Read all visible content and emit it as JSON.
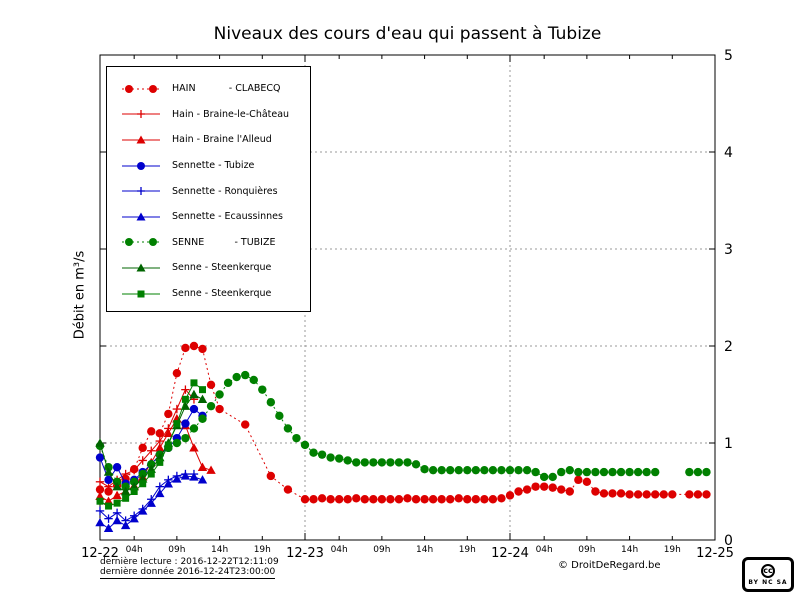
{
  "footer": {
    "last_reading": "dernière lecture : 2016-12-22T12:11:09",
    "last_data": "dernière donnée  2016-12-24T23:00:00",
    "copyright": "© DroitDeRegard.be",
    "badge_cc": "cc",
    "badge_terms": "BY NC SA"
  },
  "chart_data": {
    "type": "line",
    "title": "Niveaux des cours d'eau qui passent à Tubize",
    "xlabel": "",
    "ylabel": "Débit en m³/s",
    "ylim": [
      0,
      5
    ],
    "xlim": [
      0,
      72
    ],
    "y_ticks": [
      0,
      1,
      2,
      3,
      4,
      5
    ],
    "grid": {
      "h_values": [
        1,
        2,
        3,
        4
      ],
      "v_hours": [
        24,
        48
      ]
    },
    "legend_position": "upper left",
    "x_major_ticks": [
      {
        "h": 0,
        "label": "12-22"
      },
      {
        "h": 24,
        "label": "12-23"
      },
      {
        "h": 48,
        "label": "12-24"
      },
      {
        "h": 72,
        "label": "12-25"
      }
    ],
    "x_minor_ticks": [
      {
        "h": 4,
        "label": "04h"
      },
      {
        "h": 9,
        "label": "09h"
      },
      {
        "h": 14,
        "label": "14h"
      },
      {
        "h": 19,
        "label": "19h"
      },
      {
        "h": 28,
        "label": "04h"
      },
      {
        "h": 33,
        "label": "09h"
      },
      {
        "h": 38,
        "label": "14h"
      },
      {
        "h": 43,
        "label": "19h"
      },
      {
        "h": 52,
        "label": "04h"
      },
      {
        "h": 57,
        "label": "09h"
      },
      {
        "h": 62,
        "label": "14h"
      },
      {
        "h": 67,
        "label": "19h"
      }
    ],
    "series": [
      {
        "name": "HAIN           - CLABECQ",
        "color": "#dd0000",
        "marker": "circle",
        "line": "dotted",
        "points": [
          [
            0,
            0.52
          ],
          [
            1,
            0.5
          ],
          [
            2,
            0.56
          ],
          [
            3,
            0.63
          ],
          [
            4,
            0.73
          ],
          [
            5,
            0.95
          ],
          [
            6,
            1.12
          ],
          [
            7,
            1.1
          ],
          [
            8,
            1.3
          ],
          [
            9,
            1.72
          ],
          [
            10,
            1.98
          ],
          [
            11,
            2.0
          ],
          [
            12,
            1.97
          ],
          [
            13,
            1.6
          ],
          [
            14,
            1.35
          ],
          [
            17,
            1.19
          ],
          [
            20,
            0.66
          ],
          [
            22,
            0.52
          ],
          [
            24,
            0.42
          ],
          [
            25,
            0.42
          ],
          [
            26,
            0.43
          ],
          [
            27,
            0.42
          ],
          [
            28,
            0.42
          ],
          [
            29,
            0.42
          ],
          [
            30,
            0.43
          ],
          [
            31,
            0.42
          ],
          [
            32,
            0.42
          ],
          [
            33,
            0.42
          ],
          [
            34,
            0.42
          ],
          [
            35,
            0.42
          ],
          [
            36,
            0.43
          ],
          [
            37,
            0.42
          ],
          [
            38,
            0.42
          ],
          [
            39,
            0.42
          ],
          [
            40,
            0.42
          ],
          [
            41,
            0.42
          ],
          [
            42,
            0.43
          ],
          [
            43,
            0.42
          ],
          [
            44,
            0.42
          ],
          [
            45,
            0.42
          ],
          [
            46,
            0.42
          ],
          [
            47,
            0.43
          ],
          [
            48,
            0.46
          ],
          [
            49,
            0.5
          ],
          [
            50,
            0.52
          ],
          [
            51,
            0.55
          ],
          [
            52,
            0.55
          ],
          [
            53,
            0.54
          ],
          [
            54,
            0.52
          ],
          [
            55,
            0.5
          ],
          [
            56,
            0.62
          ],
          [
            57,
            0.6
          ],
          [
            58,
            0.5
          ],
          [
            59,
            0.48
          ],
          [
            60,
            0.48
          ],
          [
            61,
            0.48
          ],
          [
            62,
            0.47
          ],
          [
            63,
            0.47
          ],
          [
            64,
            0.47
          ],
          [
            65,
            0.47
          ],
          [
            66,
            0.47
          ],
          [
            67,
            0.47
          ],
          [
            69,
            0.47
          ],
          [
            70,
            0.47
          ],
          [
            71,
            0.47
          ]
        ]
      },
      {
        "name": "Hain - Braine-le-Château",
        "color": "#dd0000",
        "marker": "plus",
        "line": "solid",
        "points": [
          [
            0,
            0.6
          ],
          [
            1,
            0.55
          ],
          [
            2,
            0.62
          ],
          [
            3,
            0.68
          ],
          [
            4,
            0.72
          ],
          [
            5,
            0.82
          ],
          [
            6,
            0.92
          ],
          [
            7,
            1.02
          ],
          [
            8,
            1.15
          ],
          [
            9,
            1.35
          ],
          [
            10,
            1.55
          ],
          [
            11,
            1.45
          ]
        ]
      },
      {
        "name": "Hain - Braine l'Alleud",
        "color": "#dd0000",
        "marker": "triangle",
        "line": "solid",
        "points": [
          [
            0,
            0.45
          ],
          [
            1,
            0.4
          ],
          [
            2,
            0.46
          ],
          [
            3,
            0.5
          ],
          [
            4,
            0.56
          ],
          [
            5,
            0.65
          ],
          [
            6,
            0.8
          ],
          [
            7,
            0.95
          ],
          [
            8,
            1.1
          ],
          [
            9,
            1.25
          ],
          [
            10,
            1.18
          ],
          [
            11,
            0.95
          ],
          [
            12,
            0.75
          ],
          [
            13,
            0.72
          ]
        ]
      },
      {
        "name": "Sennette - Tubize",
        "color": "#0000cd",
        "marker": "circle",
        "line": "solid",
        "points": [
          [
            0,
            0.85
          ],
          [
            1,
            0.62
          ],
          [
            2,
            0.75
          ],
          [
            3,
            0.58
          ],
          [
            4,
            0.62
          ],
          [
            5,
            0.7
          ],
          [
            6,
            0.78
          ],
          [
            7,
            0.88
          ],
          [
            8,
            0.95
          ],
          [
            9,
            1.05
          ],
          [
            10,
            1.2
          ],
          [
            11,
            1.35
          ],
          [
            12,
            1.28
          ]
        ]
      },
      {
        "name": "Sennette - Ronquières",
        "color": "#0000cd",
        "marker": "plus",
        "line": "solid",
        "points": [
          [
            0,
            0.3
          ],
          [
            1,
            0.22
          ],
          [
            2,
            0.28
          ],
          [
            3,
            0.2
          ],
          [
            4,
            0.25
          ],
          [
            5,
            0.32
          ],
          [
            6,
            0.42
          ],
          [
            7,
            0.55
          ],
          [
            8,
            0.62
          ],
          [
            9,
            0.66
          ],
          [
            10,
            0.68
          ],
          [
            11,
            0.68
          ]
        ]
      },
      {
        "name": "Sennette - Ecaussinnes",
        "color": "#0000cd",
        "marker": "triangle",
        "line": "solid",
        "points": [
          [
            0,
            0.18
          ],
          [
            1,
            0.12
          ],
          [
            2,
            0.2
          ],
          [
            3,
            0.15
          ],
          [
            4,
            0.22
          ],
          [
            5,
            0.3
          ],
          [
            6,
            0.38
          ],
          [
            7,
            0.48
          ],
          [
            8,
            0.58
          ],
          [
            9,
            0.63
          ],
          [
            10,
            0.66
          ],
          [
            11,
            0.65
          ],
          [
            12,
            0.62
          ]
        ]
      },
      {
        "name": "SENNE          - TUBIZE",
        "color": "#008000",
        "marker": "circle",
        "line": "dotted",
        "points": [
          [
            0,
            0.97
          ],
          [
            1,
            0.75
          ],
          [
            2,
            0.6
          ],
          [
            3,
            0.55
          ],
          [
            4,
            0.6
          ],
          [
            5,
            0.68
          ],
          [
            6,
            0.78
          ],
          [
            7,
            0.88
          ],
          [
            8,
            0.95
          ],
          [
            9,
            1.0
          ],
          [
            10,
            1.05
          ],
          [
            11,
            1.15
          ],
          [
            12,
            1.25
          ],
          [
            13,
            1.38
          ],
          [
            14,
            1.5
          ],
          [
            15,
            1.62
          ],
          [
            16,
            1.68
          ],
          [
            17,
            1.7
          ],
          [
            18,
            1.65
          ],
          [
            19,
            1.55
          ],
          [
            20,
            1.42
          ],
          [
            21,
            1.28
          ],
          [
            22,
            1.15
          ],
          [
            23,
            1.05
          ],
          [
            24,
            0.98
          ],
          [
            25,
            0.9
          ],
          [
            26,
            0.88
          ],
          [
            27,
            0.85
          ],
          [
            28,
            0.84
          ],
          [
            29,
            0.82
          ],
          [
            30,
            0.8
          ],
          [
            31,
            0.8
          ],
          [
            32,
            0.8
          ],
          [
            33,
            0.8
          ],
          [
            34,
            0.8
          ],
          [
            35,
            0.8
          ],
          [
            36,
            0.8
          ],
          [
            37,
            0.78
          ],
          [
            38,
            0.73
          ],
          [
            39,
            0.72
          ],
          [
            40,
            0.72
          ],
          [
            41,
            0.72
          ],
          [
            42,
            0.72
          ],
          [
            43,
            0.72
          ],
          [
            44,
            0.72
          ],
          [
            45,
            0.72
          ],
          [
            46,
            0.72
          ],
          [
            47,
            0.72
          ],
          [
            48,
            0.72
          ],
          [
            49,
            0.72
          ],
          [
            50,
            0.72
          ],
          [
            51,
            0.7
          ],
          [
            52,
            0.65
          ],
          [
            53,
            0.65
          ],
          [
            54,
            0.7
          ],
          [
            55,
            0.72
          ],
          [
            56,
            0.7
          ],
          [
            57,
            0.7
          ],
          [
            58,
            0.7
          ],
          [
            59,
            0.7
          ],
          [
            60,
            0.7
          ],
          [
            61,
            0.7
          ],
          [
            62,
            0.7
          ],
          [
            63,
            0.7
          ],
          [
            64,
            0.7
          ],
          [
            65,
            0.7
          ],
          [
            69,
            0.7
          ],
          [
            70,
            0.7
          ],
          [
            71,
            0.7
          ]
        ]
      },
      {
        "name": "Senne - Steenkerque",
        "color": "#006400",
        "marker": "triangle",
        "line": "solid",
        "points": [
          [
            0,
            1.0
          ],
          [
            1,
            0.7
          ],
          [
            2,
            0.55
          ],
          [
            3,
            0.5
          ],
          [
            4,
            0.55
          ],
          [
            5,
            0.63
          ],
          [
            6,
            0.73
          ],
          [
            7,
            0.85
          ],
          [
            8,
            1.0
          ],
          [
            9,
            1.18
          ],
          [
            10,
            1.38
          ],
          [
            11,
            1.5
          ],
          [
            12,
            1.45
          ]
        ]
      },
      {
        "name": "Senne - Steenkerque",
        "color": "#008000",
        "marker": "square",
        "line": "solid",
        "points": [
          [
            0,
            0.4
          ],
          [
            1,
            0.35
          ],
          [
            2,
            0.38
          ],
          [
            3,
            0.43
          ],
          [
            4,
            0.5
          ],
          [
            5,
            0.58
          ],
          [
            6,
            0.68
          ],
          [
            7,
            0.8
          ],
          [
            8,
            0.98
          ],
          [
            9,
            1.2
          ],
          [
            10,
            1.45
          ],
          [
            11,
            1.62
          ],
          [
            12,
            1.55
          ]
        ]
      }
    ]
  }
}
